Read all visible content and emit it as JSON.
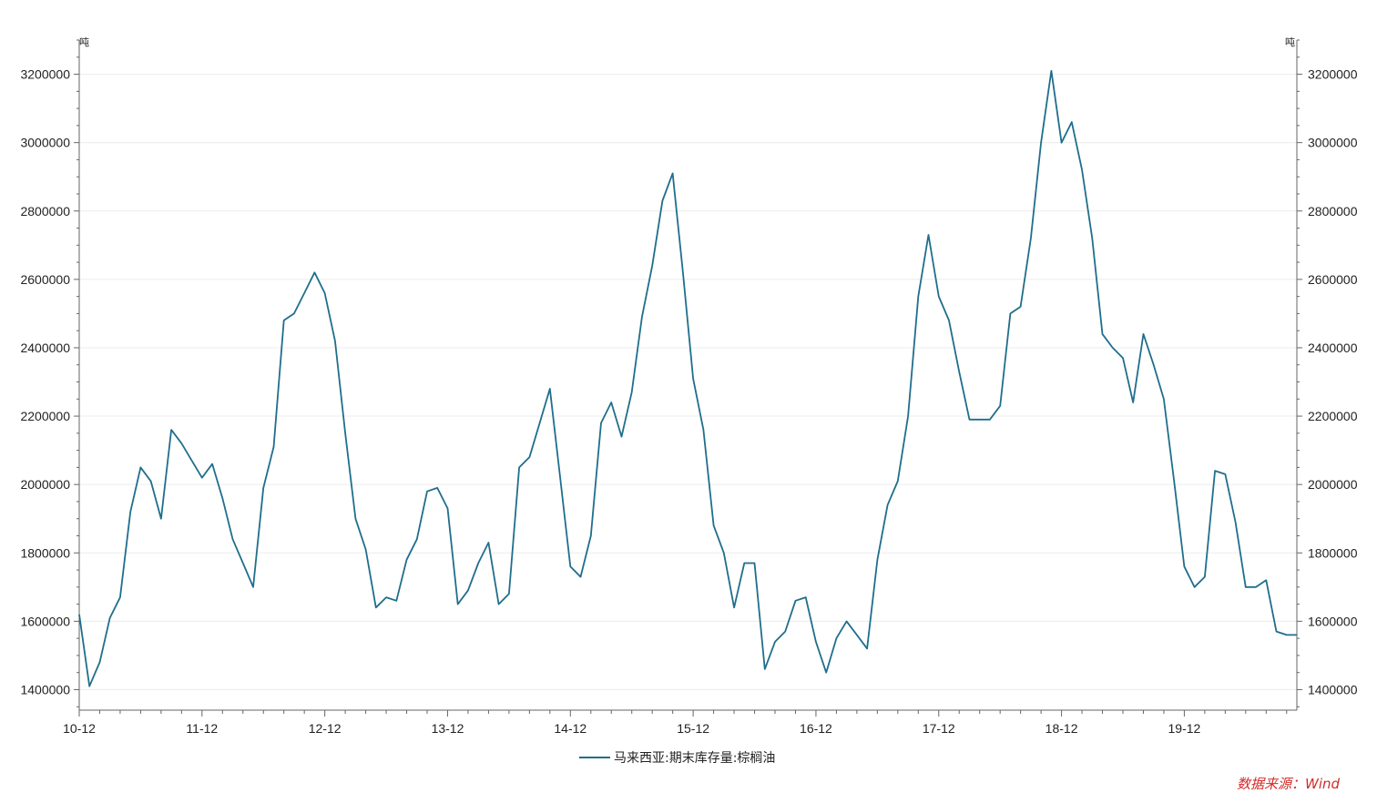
{
  "chart_data": {
    "type": "line",
    "title": "",
    "xlabel": "",
    "ylabel": "吨",
    "ylabel_right": "吨",
    "ylim": [
      1340000,
      3300000
    ],
    "yticks": [
      1400000,
      1600000,
      1800000,
      2000000,
      2200000,
      2400000,
      2600000,
      2800000,
      3000000,
      3200000
    ],
    "ytick_labels": [
      "1400000",
      "1600000",
      "1800000",
      "2000000",
      "2200000",
      "2400000",
      "2600000",
      "2800000",
      "3000000",
      "3200000"
    ],
    "x_start": "2010-12",
    "x_end": "2020-11",
    "xticks": [
      "2010-12",
      "2011-12",
      "2012-12",
      "2013-12",
      "2014-12",
      "2015-12",
      "2016-12",
      "2017-12",
      "2018-12",
      "2019-12"
    ],
    "xtick_labels": [
      "10-12",
      "11-12",
      "12-12",
      "13-12",
      "14-12",
      "15-12",
      "16-12",
      "17-12",
      "18-12",
      "19-12"
    ],
    "grid": true,
    "legend_position": "bottom-center",
    "series": [
      {
        "name": "马来西亚:期末库存量:棕榈油",
        "color": "#1f6e8c",
        "x": [
          "2010-12",
          "2011-01",
          "2011-02",
          "2011-03",
          "2011-04",
          "2011-05",
          "2011-06",
          "2011-07",
          "2011-08",
          "2011-09",
          "2011-10",
          "2011-11",
          "2011-12",
          "2012-01",
          "2012-02",
          "2012-03",
          "2012-04",
          "2012-05",
          "2012-06",
          "2012-07",
          "2012-08",
          "2012-09",
          "2012-10",
          "2012-11",
          "2012-12",
          "2013-01",
          "2013-02",
          "2013-03",
          "2013-04",
          "2013-05",
          "2013-06",
          "2013-07",
          "2013-08",
          "2013-09",
          "2013-10",
          "2013-11",
          "2013-12",
          "2014-01",
          "2014-02",
          "2014-03",
          "2014-04",
          "2014-05",
          "2014-06",
          "2014-07",
          "2014-08",
          "2014-09",
          "2014-10",
          "2014-11",
          "2014-12",
          "2015-01",
          "2015-02",
          "2015-03",
          "2015-04",
          "2015-05",
          "2015-06",
          "2015-07",
          "2015-08",
          "2015-09",
          "2015-10",
          "2015-11",
          "2015-12",
          "2016-01",
          "2016-02",
          "2016-03",
          "2016-04",
          "2016-05",
          "2016-06",
          "2016-07",
          "2016-08",
          "2016-09",
          "2016-10",
          "2016-11",
          "2016-12",
          "2017-01",
          "2017-02",
          "2017-03",
          "2017-04",
          "2017-05",
          "2017-06",
          "2017-07",
          "2017-08",
          "2017-09",
          "2017-10",
          "2017-11",
          "2017-12",
          "2018-01",
          "2018-02",
          "2018-03",
          "2018-04",
          "2018-05",
          "2018-06",
          "2018-07",
          "2018-08",
          "2018-09",
          "2018-10",
          "2018-11",
          "2018-12",
          "2019-01",
          "2019-02",
          "2019-03",
          "2019-04",
          "2019-05",
          "2019-06",
          "2019-07",
          "2019-08",
          "2019-09",
          "2019-10",
          "2019-11",
          "2019-12",
          "2020-01",
          "2020-02",
          "2020-03",
          "2020-04",
          "2020-05",
          "2020-06",
          "2020-07",
          "2020-08",
          "2020-09",
          "2020-10",
          "2020-11"
        ],
        "values": [
          1620000,
          1410000,
          1480000,
          1610000,
          1670000,
          1920000,
          2050000,
          2010000,
          1900000,
          2160000,
          2120000,
          2070000,
          2020000,
          2060000,
          1960000,
          1840000,
          1770000,
          1700000,
          1990000,
          2110000,
          2480000,
          2500000,
          2560000,
          2620000,
          2560000,
          2420000,
          2150000,
          1900000,
          1810000,
          1640000,
          1670000,
          1660000,
          1780000,
          1840000,
          1980000,
          1990000,
          1930000,
          1650000,
          1690000,
          1770000,
          1830000,
          1650000,
          1680000,
          2050000,
          2080000,
          2180000,
          2280000,
          2020000,
          1760000,
          1730000,
          1850000,
          2180000,
          2240000,
          2140000,
          2270000,
          2490000,
          2640000,
          2830000,
          2910000,
          2620000,
          2310000,
          2160000,
          1880000,
          1800000,
          1640000,
          1770000,
          1770000,
          1460000,
          1540000,
          1570000,
          1660000,
          1670000,
          1540000,
          1450000,
          1550000,
          1600000,
          1560000,
          1520000,
          1780000,
          1940000,
          2010000,
          2200000,
          2550000,
          2730000,
          2550000,
          2480000,
          2330000,
          2190000,
          2190000,
          2190000,
          2230000,
          2500000,
          2520000,
          2720000,
          3000000,
          3210000,
          3000000,
          3060000,
          2920000,
          2720000,
          2440000,
          2400000,
          2370000,
          2240000,
          2440000,
          2350000,
          2250000,
          2010000,
          1760000,
          1700000,
          1730000,
          2040000,
          2030000,
          1890000,
          1700000,
          1700000,
          1720000,
          1570000,
          1560000,
          1560000
        ]
      }
    ]
  },
  "legend": {
    "label": "马来西亚:期末库存量:棕榈油"
  },
  "source": {
    "label": "数据来源：Wind"
  }
}
